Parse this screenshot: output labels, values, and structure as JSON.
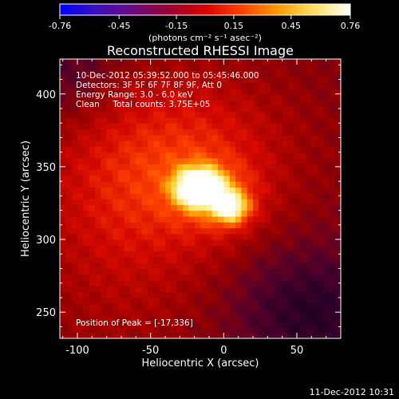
{
  "colorbar": {
    "ticks": [
      "-0.76",
      "-0.45",
      "-0.15",
      "0.15",
      "0.45",
      "0.76"
    ],
    "range": [
      -0.76,
      0.76
    ],
    "unit_label": "(photons cm⁻² s⁻¹ asec⁻²)",
    "colors": [
      "#0000ff",
      "#3a10c0",
      "#6a0a80",
      "#9a0030",
      "#d80000",
      "#ff4000",
      "#ff9a00",
      "#ffe060",
      "#ffffff"
    ]
  },
  "chart_data": {
    "type": "heatmap",
    "title": "Reconstructed RHESSI Image",
    "xlabel": "Heliocentric X (arcsec)",
    "ylabel": "Heliocentric Y (arcsec)",
    "xlim": [
      -112,
      80
    ],
    "ylim": [
      232,
      424
    ],
    "xticks": [
      -100,
      -50,
      0,
      50
    ],
    "yticks": [
      250,
      300,
      350,
      400
    ],
    "peak": [
      -17,
      336
    ],
    "annotations": [
      "10-Dec-2012 05:39:52.000 to 05:45:46.000",
      "Detectors: 3F 5F 6F 7F 8F 9F, Att 0",
      "Energy Range: 3.0 - 6.0 keV",
      "Clean     Total counts: 3.75E+05"
    ],
    "peak_label": "Position of Peak = [-17,336]"
  },
  "footer": {
    "timestamp": "11-Dec-2012 10:31"
  }
}
